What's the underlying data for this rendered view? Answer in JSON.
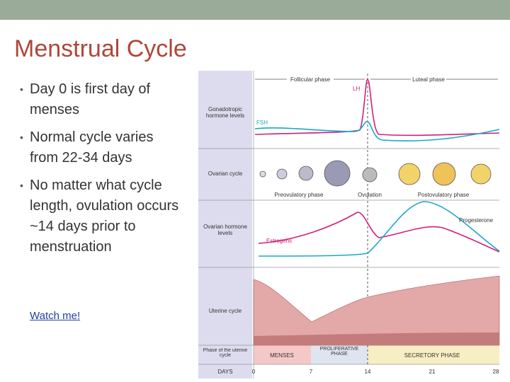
{
  "header": {
    "title": "Menstrual Cycle"
  },
  "bullets": [
    "Day 0 is first day of menses",
    "Normal cycle varies from 22-34 days",
    "No matter what cycle length, ovulation occurs ~14 days prior to menstruation"
  ],
  "link": "Watch me!",
  "diagram": {
    "phases": [
      "Follicular phase",
      "Luteal phase"
    ],
    "rows": [
      "Gonadotropic hormone levels",
      "Ovarian cycle",
      "Ovarian hormone levels",
      "Uterine cycle",
      "Phase of the uterine cycle"
    ],
    "hormones": {
      "lh": "LH",
      "fsh": "FSH",
      "estrogens": "Estrogens",
      "progesterone": "Progesterone"
    },
    "ovarian": [
      "Preovulatory phase",
      "Ovulation",
      "Postovulatory phase"
    ],
    "uterine_phases": [
      "MENSES",
      "PROLIFERATIVE PHASE",
      "SECRETORY PHASE"
    ],
    "days_label": "DAYS",
    "days": [
      "0",
      "7",
      "14",
      "21",
      "28"
    ]
  }
}
